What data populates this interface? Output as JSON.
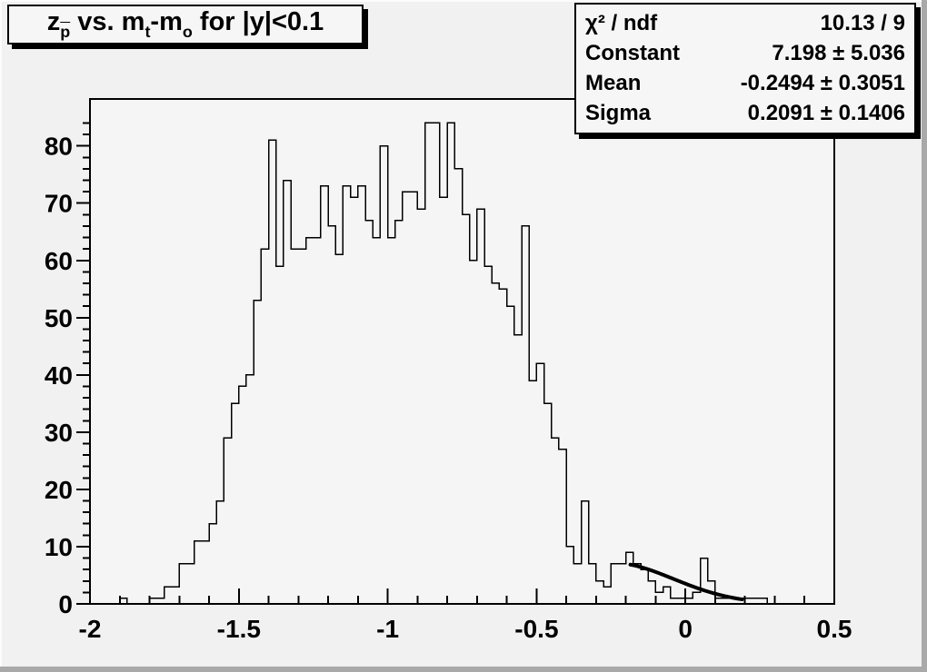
{
  "title": {
    "plain": "z_p vs. m_t-m_o for |y|<0.1",
    "parts": [
      {
        "t": "z"
      },
      {
        "t": "p",
        "sub": true,
        "bar": true
      },
      {
        "t": " vs. m"
      },
      {
        "t": "t",
        "sub": true
      },
      {
        "t": "-m"
      },
      {
        "t": "o",
        "sub": true
      },
      {
        "t": " for |y|<0.1"
      }
    ]
  },
  "stats": {
    "rows": [
      {
        "label": "χ² / ndf",
        "value": "10.13 / 9"
      },
      {
        "label": "Constant",
        "value": "7.198 ± 5.036"
      },
      {
        "label": "Mean",
        "value": "-0.2494 ± 0.3051"
      },
      {
        "label": "Sigma",
        "value": "0.2091 ± 0.1406"
      }
    ]
  },
  "chart_data": {
    "type": "histogram-step",
    "title": "z_p vs. m_t-m_o for |y|<0.1",
    "xlabel": "",
    "ylabel": "",
    "x_range": [
      -2,
      0.5
    ],
    "y_range": [
      0,
      88.2
    ],
    "grid": false,
    "bin_start": -2,
    "bin_width": 0.025,
    "values": [
      0,
      0,
      0,
      0,
      1,
      0,
      0,
      0,
      1,
      1,
      3,
      3,
      7,
      7,
      11,
      11,
      14,
      18,
      29,
      35,
      38,
      40,
      53,
      62,
      81,
      59,
      74,
      62,
      62,
      64,
      64,
      73,
      66,
      61,
      73,
      71,
      73,
      67,
      64,
      80,
      64,
      67,
      72,
      72,
      69,
      84,
      84,
      71,
      84,
      76,
      68,
      60,
      69,
      59,
      56,
      55,
      52,
      47,
      66,
      39,
      42,
      35,
      29,
      27,
      10,
      7,
      18,
      7,
      4,
      3,
      7,
      7,
      9,
      7,
      6,
      4,
      2,
      3,
      1,
      1,
      1,
      2,
      8,
      4,
      1,
      1,
      1,
      1,
      1,
      1,
      1,
      0,
      0,
      0,
      0,
      0,
      0,
      0,
      0,
      0
    ],
    "x_ticks": [
      -2,
      -1.5,
      -1,
      -0.5,
      0,
      0.5
    ],
    "x_tick_labels": [
      "-2",
      "-1.5",
      "-1",
      "-0.5",
      "0",
      "0.5"
    ],
    "x_minor_step": 0.1,
    "y_ticks": [
      0,
      10,
      20,
      30,
      40,
      50,
      60,
      70,
      80
    ],
    "y_tick_labels": [
      "0",
      "10",
      "20",
      "30",
      "40",
      "50",
      "60",
      "70",
      "80"
    ],
    "y_minor_step": 2,
    "line_color": "#000000",
    "frame_fill": "#f4f5f4",
    "fit": {
      "type": "gaussian",
      "constant": 7.198,
      "mean": -0.2494,
      "sigma": 0.2091,
      "range": [
        -0.185,
        0.19
      ],
      "color": "#000000"
    }
  }
}
